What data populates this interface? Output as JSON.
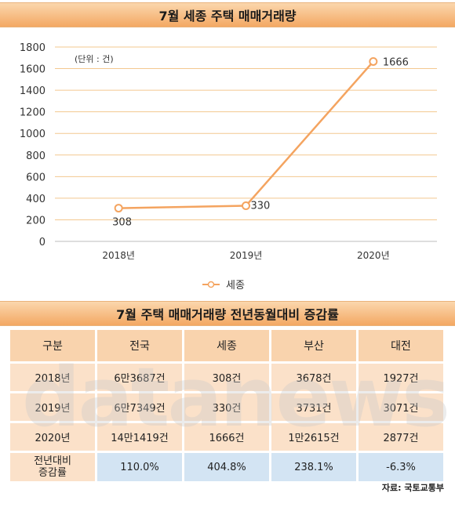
{
  "chart_data": {
    "type": "line",
    "title": "7월 세종 주택 매매거래량",
    "unit_note": "(단위 : 건)",
    "categories": [
      "2018년",
      "2019년",
      "2020년"
    ],
    "series": [
      {
        "name": "세종",
        "values": [
          308,
          330,
          1666
        ]
      }
    ],
    "ylim": [
      0,
      1800
    ],
    "yticks": [
      0,
      200,
      400,
      600,
      800,
      1000,
      1200,
      1400,
      1600,
      1800
    ],
    "grid": true,
    "legend": "bottom",
    "color": "#f4a460"
  },
  "table": {
    "title": "7월 주택 매매거래량 전년동월대비 증감률",
    "headers": [
      "구분",
      "전국",
      "세종",
      "부산",
      "대전"
    ],
    "rows": [
      [
        "2018년",
        "6만3687건",
        "308건",
        "3678건",
        "1927건"
      ],
      [
        "2019년",
        "6만7349건",
        "330건",
        "3731건",
        "3071건"
      ],
      [
        "2020년",
        "14만1419건",
        "1666건",
        "1만2615건",
        "2877건"
      ]
    ],
    "change_row": {
      "label_line1": "전년대비",
      "label_line2": "증감률",
      "values": [
        "110.0%",
        "404.8%",
        "238.1%",
        "-6.3%"
      ]
    }
  },
  "watermark": "datanews",
  "source": "자료: 국토교통부"
}
